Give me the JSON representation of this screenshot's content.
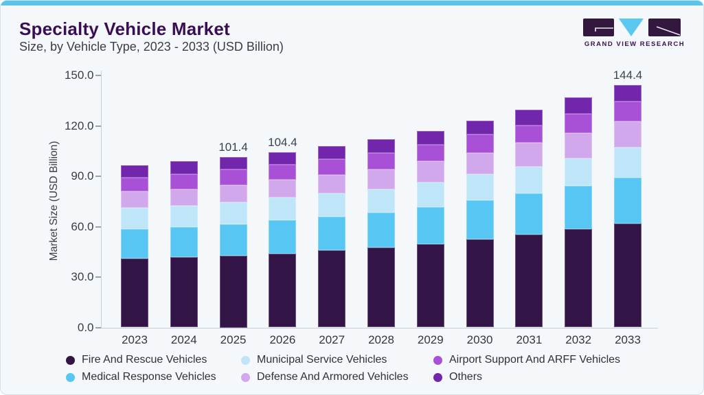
{
  "header": {
    "title": "Specialty Vehicle Market",
    "subtitle": "Size, by Vehicle Type, 2023 - 2033 (USD Billion)"
  },
  "brand": {
    "logo_text": "GRAND VIEW RESEARCH",
    "mark_color": "#33173F",
    "triangle_color": "#5BC8F0",
    "text_color": "#3A1052"
  },
  "colors": {
    "top_bar": "#5BC4EE",
    "card_background": "#F4F8FB",
    "card_border": "#D6E0E7",
    "title_text": "#3A0E52",
    "subtitle_text": "#3C3D46",
    "axis_line": "#C6CED6",
    "tick_text": "#3A3B45"
  },
  "chart_data": {
    "type": "bar",
    "stacked": true,
    "ylabel": "Market Size (USD Billion)",
    "xlabel": "",
    "ylim": [
      0,
      150
    ],
    "ytick_labels": [
      "0.0",
      "30.0",
      "60.0",
      "90.0",
      "120.0",
      "150.0"
    ],
    "grid": false,
    "legend_position": "bottom",
    "categories": [
      "2023",
      "2024",
      "2025",
      "2026",
      "2027",
      "2028",
      "2029",
      "2030",
      "2031",
      "2032",
      "2033"
    ],
    "series": [
      {
        "name": "Fire And Rescue Vehicles",
        "color": "#331447",
        "values": [
          41.1,
          41.8,
          42.5,
          43.9,
          45.8,
          47.6,
          49.5,
          52.6,
          55.3,
          58.4,
          61.8
        ]
      },
      {
        "name": "Medical Response Vehicles",
        "color": "#58C6F2",
        "values": [
          17.3,
          18.0,
          18.9,
          20.0,
          20.1,
          20.6,
          22.2,
          23.1,
          24.5,
          25.8,
          27.2
        ]
      },
      {
        "name": "Municipal Service Vehicles",
        "color": "#BFE6F8",
        "values": [
          12.7,
          12.7,
          13.0,
          13.3,
          13.9,
          14.2,
          14.7,
          15.4,
          15.8,
          16.3,
          18.1
        ]
      },
      {
        "name": "Defense And Armored Vehicles",
        "color": "#D2A8EC",
        "values": [
          9.8,
          9.8,
          10.2,
          10.9,
          10.9,
          11.7,
          12.5,
          12.7,
          14.5,
          15.4,
          15.5
        ]
      },
      {
        "name": "Airport Support And ARFF Vehicles",
        "color": "#A851D6",
        "values": [
          8.4,
          8.9,
          9.3,
          8.7,
          9.5,
          9.8,
          9.9,
          11.1,
          10.2,
          11.4,
          12.0
        ]
      },
      {
        "name": "Others",
        "color": "#7226AC",
        "values": [
          7.2,
          7.8,
          7.5,
          7.6,
          7.6,
          8.0,
          8.2,
          8.2,
          9.3,
          9.5,
          9.8
        ]
      }
    ],
    "total_labels": {
      "2025": "101.4",
      "2026": "104.4",
      "2033": "144.4"
    }
  },
  "legend": {
    "rows": [
      [
        "Fire And Rescue Vehicles",
        "Municipal Service Vehicles",
        "Airport Support And ARFF Vehicles"
      ],
      [
        "Medical Response Vehicles",
        "Defense And Armored Vehicles",
        "Others"
      ]
    ]
  }
}
